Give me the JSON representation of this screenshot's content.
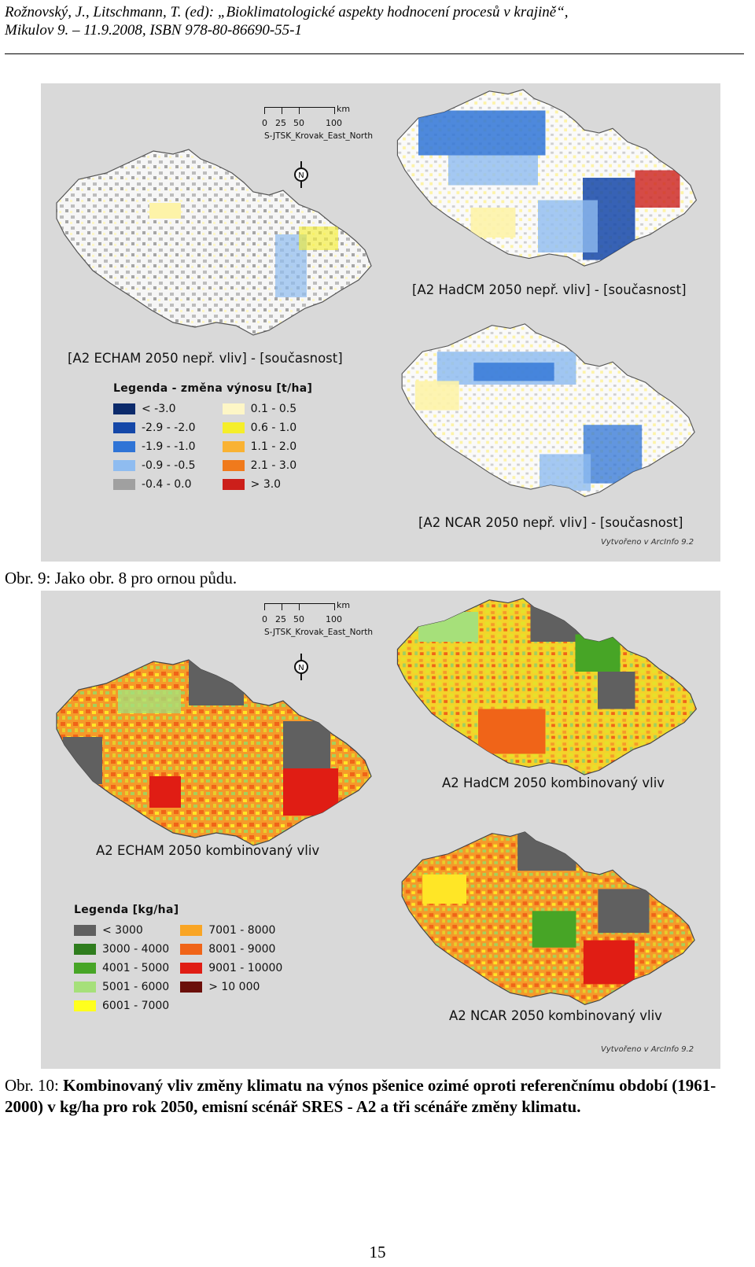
{
  "header": {
    "line1": "Rožnovský, J., Litschmann, T. (ed): „Bioklimatologické aspekty hodnocení procesů v krajině“,",
    "line2": "Mikulov 9. – 11.9.2008, ISBN 978-80-86690-55-1"
  },
  "fig9": {
    "caption": "Obr. 9:  Jako obr. 8 pro ornou půdu.",
    "scale": {
      "ticks": [
        "0",
        "25",
        "50",
        "100"
      ],
      "unit": "km",
      "projection": "S-JTSK_Krovak_East_North"
    },
    "north_label": "N",
    "credit": "Vytvořeno v ArcInfo 9.2",
    "maps": [
      {
        "title": "[A2 ECHAM 2050 nepř. vliv] - [současnost]"
      },
      {
        "title": "[A2 HadCM 2050 nepř. vliv] - [současnost]"
      },
      {
        "title": "[A2 NCAR 2050 nepř. vliv] - [současnost]"
      }
    ],
    "legend": {
      "title": "Legenda - změna výnosu [t/ha]",
      "items": [
        {
          "label": "< -3.0",
          "color": "#0b2a6b"
        },
        {
          "label": "-2.9 - -2.0",
          "color": "#1447a8"
        },
        {
          "label": "-1.9 - -1.0",
          "color": "#2f74d6"
        },
        {
          "label": "-0.9 - -0.5",
          "color": "#8fbcf0"
        },
        {
          "label": "-0.4 - 0.0",
          "color": "#a0a0a0"
        },
        {
          "label": "0.1 - 0.5",
          "color": "#fdf6c6"
        },
        {
          "label": "0.6 - 1.0",
          "color": "#f5ee2a"
        },
        {
          "label": "1.1 - 2.0",
          "color": "#f9b233"
        },
        {
          "label": "2.1 - 3.0",
          "color": "#f07a1c"
        },
        {
          "label": "> 3.0",
          "color": "#cc1f1a"
        }
      ]
    }
  },
  "fig10": {
    "caption_lead": "Obr. 10:",
    "caption_text": "Kombinovaný vliv změny klimatu na výnos pšenice ozimé oproti referenčnímu období (1961-2000) v kg/ha pro rok 2050, emisní scénář SRES - A2 a tři scénáře změny klimatu.",
    "scale": {
      "ticks": [
        "0",
        "25",
        "50",
        "100"
      ],
      "unit": "km",
      "projection": "S-JTSK_Krovak_East_North"
    },
    "north_label": "N",
    "credit": "Vytvořeno v ArcInfo 9.2",
    "maps": [
      {
        "title": "A2 ECHAM 2050 kombinovaný vliv"
      },
      {
        "title": "A2 HadCM 2050 kombinovaný vliv"
      },
      {
        "title": "A2 NCAR 2050 kombinovaný vliv"
      }
    ],
    "legend": {
      "title": "Legenda [kg/ha]",
      "items": [
        {
          "label": "< 3000",
          "color": "#606060"
        },
        {
          "label": "3000 - 4000",
          "color": "#2f7d1e"
        },
        {
          "label": "4001 - 5000",
          "color": "#47a526"
        },
        {
          "label": "5001 - 6000",
          "color": "#a6e07a"
        },
        {
          "label": "6001 - 7000",
          "color": "#ffff1e"
        },
        {
          "label": "7001 - 8000",
          "color": "#f9a524"
        },
        {
          "label": "8001 - 9000",
          "color": "#f06418"
        },
        {
          "label": "9001 - 10000",
          "color": "#e01d14"
        },
        {
          "label": "> 10 000",
          "color": "#6b0f0a"
        }
      ]
    }
  },
  "page_number": "15"
}
